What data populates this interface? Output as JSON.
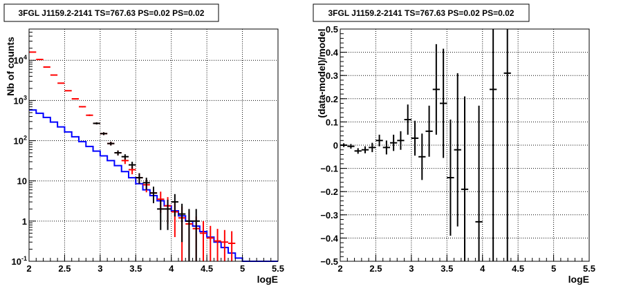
{
  "chart_data": [
    {
      "type": "line",
      "title": "3FGL J1159.2-2141 TS=767.63 PS=0.02 PS=0.02",
      "xlabel": "logE",
      "ylabel": "Nb of counts",
      "yscale": "log",
      "xlim": [
        2,
        5.5
      ],
      "ylim": [
        0.1,
        60000
      ],
      "grid": true,
      "x_ticks": [
        "2",
        "2.5",
        "3",
        "3.5",
        "4",
        "4.5",
        "5",
        "5.5"
      ],
      "y_ticks": [
        "10^-1",
        "1",
        "10",
        "10^2",
        "10^3",
        "10^4"
      ],
      "y_tick_values": [
        0.1,
        1,
        10,
        100,
        1000,
        10000
      ],
      "bin_edges": [
        2,
        2.1,
        2.2,
        2.3,
        2.4,
        2.5,
        2.6,
        2.7,
        2.8,
        2.9,
        3.0,
        3.1,
        3.2,
        3.3,
        3.4,
        3.5,
        3.6,
        3.7,
        3.8,
        3.9,
        4.0,
        4.1,
        4.2,
        4.3,
        4.4,
        4.5,
        4.6,
        4.7,
        4.8,
        4.9,
        5.0,
        5.1,
        5.2,
        5.3,
        5.4,
        5.5
      ],
      "series": [
        {
          "style": "step",
          "color": "#0000ff",
          "x": [
            2.05,
            2.15,
            2.25,
            2.35,
            2.45,
            2.55,
            2.65,
            2.75,
            2.85,
            2.95,
            3.05,
            3.15,
            3.25,
            3.35,
            3.45,
            3.55,
            3.65,
            3.75,
            3.85,
            3.95,
            4.05,
            4.15,
            4.25,
            4.35,
            4.45,
            4.55,
            4.65,
            4.75,
            4.85,
            4.95,
            5.05,
            5.15,
            5.25,
            5.35,
            5.45
          ],
          "y": [
            580,
            480,
            380,
            290,
            220,
            165,
            125,
            95,
            72,
            55,
            42,
            32,
            24,
            17,
            12,
            8.5,
            6,
            4.3,
            3.2,
            2.4,
            1.8,
            1.35,
            1,
            0.75,
            0.55,
            0.4,
            0.3,
            0.22,
            0.16,
            0.12,
            0.1,
            0.1,
            0.1,
            0.1,
            0.1
          ]
        },
        {
          "style": "errorbars",
          "color": "#ff0000",
          "x": [
            2.05,
            2.15,
            2.25,
            2.35,
            2.45,
            2.55,
            2.65,
            2.75,
            2.85,
            2.95,
            3.05,
            3.15,
            3.25,
            3.35,
            3.45,
            3.55,
            3.65,
            3.75,
            3.85,
            3.95,
            4.05,
            4.15,
            4.25,
            4.35,
            4.45,
            4.55,
            4.65,
            4.75,
            4.85
          ],
          "y": [
            16000,
            10500,
            6800,
            4300,
            2700,
            1750,
            1100,
            700,
            430,
            270,
            150,
            85,
            50,
            32,
            19,
            12,
            8,
            5,
            3.5,
            2.4,
            1.7,
            1.2,
            0.85,
            0.65,
            0.5,
            0.38,
            0.32,
            0.3,
            0.28
          ],
          "err": [
            126,
            102,
            82,
            66,
            52,
            42,
            33,
            26,
            21,
            16,
            12,
            9,
            7,
            5.7,
            4.4,
            3.5,
            2.8,
            2.2,
            1.9,
            1.55,
            1.3,
            1.1,
            0.85,
            0.65,
            0.5,
            0.38,
            0.32,
            0.3,
            0.28
          ]
        },
        {
          "style": "errorbars",
          "color": "#000000",
          "x": [
            2.95,
            3.05,
            3.15,
            3.25,
            3.35,
            3.45,
            3.55,
            3.65,
            3.75,
            3.85,
            3.95,
            4.05,
            4.15,
            4.25,
            4.35
          ],
          "y": [
            270,
            150,
            85,
            50,
            40,
            25,
            12,
            9,
            5,
            2,
            2,
            3,
            1.5,
            1,
            1
          ],
          "err": [
            16,
            12,
            9,
            7,
            6,
            5,
            3.5,
            3,
            2.2,
            1.4,
            1.4,
            1.7,
            1.2,
            1,
            1
          ]
        }
      ]
    },
    {
      "type": "scatter",
      "title": "3FGL J1159.2-2141 TS=767.63 PS=0.02 PS=0.02",
      "xlabel": "logE",
      "ylabel": "(data-model)/model",
      "xlim": [
        2,
        5.5
      ],
      "ylim": [
        -0.5,
        0.5
      ],
      "grid": true,
      "x_ticks": [
        "2",
        "2.5",
        "3",
        "3.5",
        "4",
        "4.5",
        "5",
        "5.5"
      ],
      "y_ticks": [
        "−0.5",
        "−0.4",
        "−0.3",
        "−0.2",
        "−0.1",
        "0",
        "0.1",
        "0.2",
        "0.3",
        "0.4",
        "0.5"
      ],
      "y_tick_values": [
        -0.5,
        -0.4,
        -0.3,
        -0.2,
        -0.1,
        0,
        0.1,
        0.2,
        0.3,
        0.4,
        0.5
      ],
      "series": [
        {
          "color": "#000000",
          "x": [
            2.05,
            2.15,
            2.25,
            2.35,
            2.45,
            2.55,
            2.65,
            2.75,
            2.85,
            2.95,
            3.05,
            3.15,
            3.25,
            3.35,
            3.45,
            3.55,
            3.65,
            3.75,
            3.95,
            4.15,
            4.35
          ],
          "y": [
            0.0,
            -0.005,
            -0.025,
            -0.02,
            -0.01,
            0.02,
            -0.01,
            0.01,
            0.02,
            0.11,
            0.03,
            -0.05,
            0.06,
            0.24,
            0.18,
            -0.14,
            -0.02,
            -0.19,
            -0.33,
            0.24,
            0.31
          ],
          "err": [
            0.008,
            0.01,
            0.012,
            0.015,
            0.02,
            0.025,
            0.03,
            0.035,
            0.04,
            0.065,
            0.075,
            0.1,
            0.11,
            0.195,
            0.235,
            0.25,
            0.33,
            0.4,
            0.5,
            0.75,
            0.9
          ]
        }
      ]
    }
  ]
}
